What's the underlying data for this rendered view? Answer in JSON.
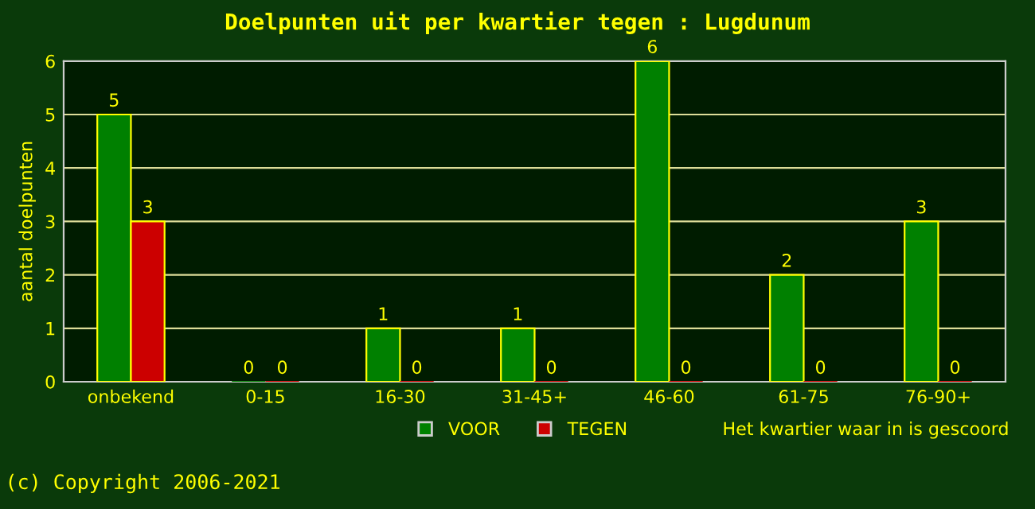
{
  "chart_data": {
    "type": "bar",
    "title": "Doelpunten uit per kwartier tegen : Lugdunum",
    "categories": [
      "onbekend",
      "0-15",
      "16-30",
      "31-45+",
      "46-60",
      "61-75",
      "76-90+"
    ],
    "series": [
      {
        "name": "VOOR",
        "color": "#008000",
        "values": [
          5,
          0,
          1,
          1,
          6,
          2,
          3
        ]
      },
      {
        "name": "TEGEN",
        "color": "#cc0000",
        "values": [
          3,
          0,
          0,
          0,
          0,
          0,
          0
        ]
      }
    ],
    "xlabel": "Het kwartier waar in is gescoord",
    "ylabel": "aantal doelpunten",
    "ylim": [
      0,
      6
    ],
    "yticks": [
      0,
      1,
      2,
      3,
      4,
      5,
      6
    ],
    "grid": "y",
    "legend": "bottom",
    "data_labels": true,
    "annotations": [
      "(c) Copyright 2006-2021"
    ]
  }
}
